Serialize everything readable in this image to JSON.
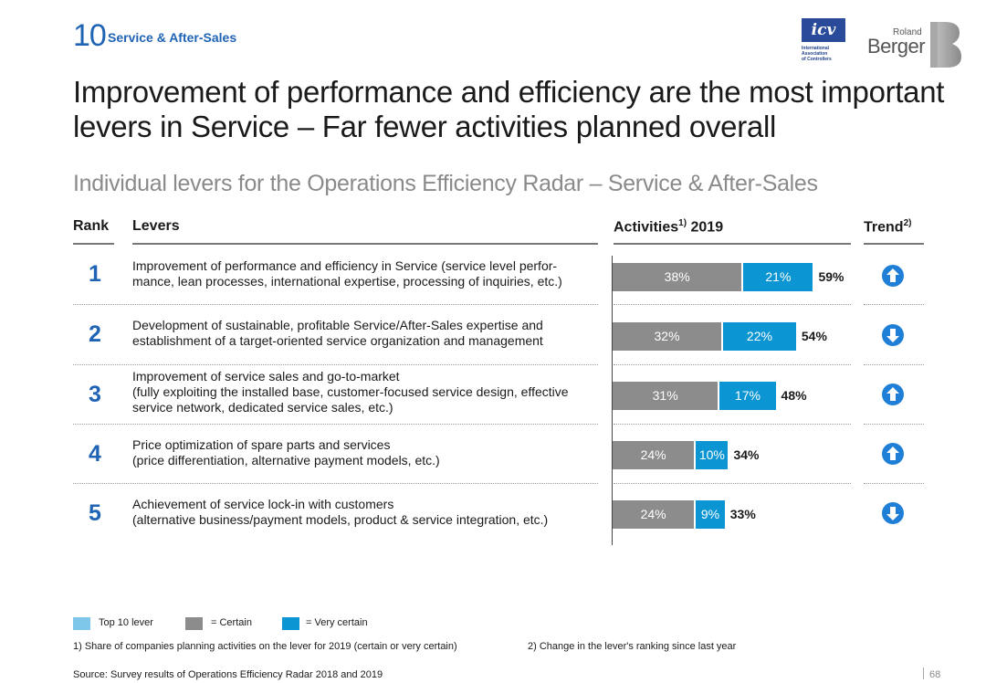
{
  "header": {
    "section_number": "10",
    "section_title": "Service & After-Sales",
    "icv_logo_text": "icv",
    "icv_logo_sub": [
      "International",
      "Association",
      "of Controllers"
    ],
    "rb_logo_top": "Roland",
    "rb_logo_main": "Berger"
  },
  "title": "Improvement of performance and efficiency are the most important levers in Service – Far fewer activities planned overall",
  "subtitle": "Individual levers for the Operations Efficiency Radar – Service & After-Sales",
  "columns": {
    "rank": "Rank",
    "levers": "Levers",
    "activities": "Activities",
    "activities_sup": "1)",
    "activities_year": " 2019",
    "trend": "Trend",
    "trend_sup": "2)"
  },
  "chart_data": {
    "type": "bar",
    "stacked": true,
    "orientation": "horizontal",
    "categories": [
      "1",
      "2",
      "3",
      "4",
      "5"
    ],
    "series": [
      {
        "name": "Certain",
        "color": "#8c8c8c",
        "values": [
          38,
          32,
          31,
          24,
          24
        ]
      },
      {
        "name": "Very certain",
        "color": "#0b95d3",
        "values": [
          21,
          22,
          17,
          10,
          9
        ]
      }
    ],
    "totals": [
      59,
      54,
      48,
      34,
      33
    ],
    "unit": "%",
    "xlim": [
      0,
      70
    ]
  },
  "rows": [
    {
      "rank": "1",
      "lever_lines": [
        "Improvement of performance and efficiency in Service (service level perfor-",
        "mance, lean processes, international expertise, processing of inquiries, etc.)"
      ],
      "certain": "38%",
      "very_certain": "21%",
      "total": "59%",
      "trend": "up"
    },
    {
      "rank": "2",
      "lever_lines": [
        "Development of sustainable, profitable Service/After-Sales expertise and",
        "establishment of a target-oriented service organization and management"
      ],
      "certain": "32%",
      "very_certain": "22%",
      "total": "54%",
      "trend": "down"
    },
    {
      "rank": "3",
      "lever_lines": [
        "Improvement of service sales and go-to-market",
        "(fully exploiting the installed base, customer-focused service design, effective",
        "service network, dedicated service sales, etc.)"
      ],
      "certain": "31%",
      "very_certain": "17%",
      "total": "48%",
      "trend": "up"
    },
    {
      "rank": "4",
      "lever_lines": [
        "Price optimization of spare parts and services",
        "(price differentiation, alternative payment models, etc.)"
      ],
      "certain": "24%",
      "very_certain": "10%",
      "total": "34%",
      "trend": "up"
    },
    {
      "rank": "5",
      "lever_lines": [
        "Achievement of service lock-in with customers",
        "(alternative business/payment models, product & service integration, etc.)"
      ],
      "certain": "24%",
      "very_certain": "9%",
      "total": "33%",
      "trend": "down"
    }
  ],
  "trend_icons": {
    "up": "arrow-up-circle-icon",
    "down": "arrow-down-circle-icon"
  },
  "legend": {
    "top10": "Top 10 lever",
    "certain": "= Certain",
    "very_certain": "= Very certain",
    "colors": {
      "top10": "#7fc7ea",
      "certain": "#8c8c8c",
      "very_certain": "#0b95d3"
    }
  },
  "footnotes": {
    "note1": "1) Share of companies planning activities on the lever for 2019 (certain or very certain)",
    "note2": "2) Change in the lever's ranking since last year",
    "source": "Source: Survey results of Operations Efficiency Radar 2018 and 2019"
  },
  "page_number": "68"
}
